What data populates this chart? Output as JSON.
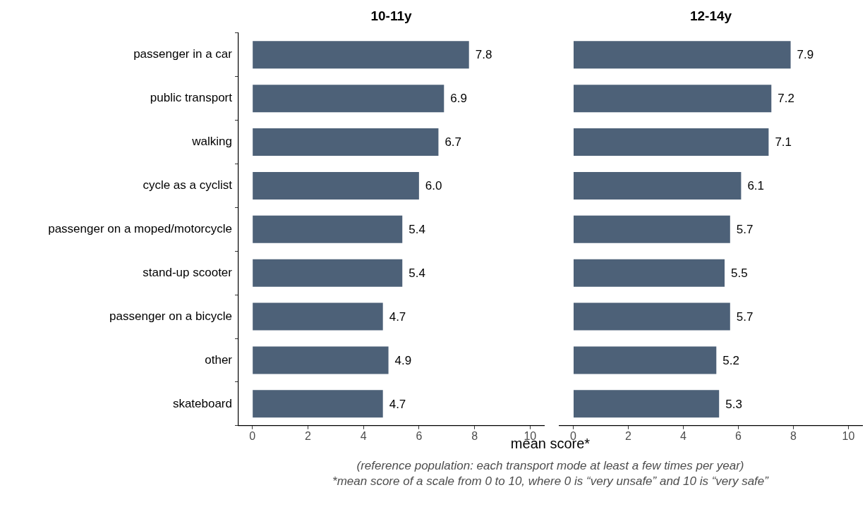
{
  "chart_data": [
    {
      "type": "bar",
      "orientation": "horizontal",
      "title": "10-11y",
      "xlabel": "mean score*",
      "categories": [
        "passenger in a car",
        "public transport",
        "walking",
        "cycle as a cyclist",
        "passenger on a moped/motorcycle",
        "stand-up scooter",
        "passenger on a bicycle",
        "other",
        "skateboard"
      ],
      "values": [
        7.8,
        6.9,
        6.7,
        6.0,
        5.4,
        5.4,
        4.7,
        4.9,
        4.7
      ],
      "value_labels": [
        "7.8",
        "6.9",
        "6.7",
        "6.0",
        "5.4",
        "5.4",
        "4.7",
        "4.9",
        "4.7"
      ],
      "color": "#4d6178",
      "xlim": [
        -0.5,
        10.5
      ],
      "xticks": [
        0,
        2,
        4,
        6,
        8,
        10
      ],
      "grid": false,
      "legend": false,
      "annotations": [
        "(reference population: each transport mode at least a few times per year)",
        "*mean score of a scale from 0 to 10, where 0 is “very unsafe” and 10 is “very safe”"
      ]
    },
    {
      "type": "bar",
      "orientation": "horizontal",
      "title": "12-14y",
      "categories": [
        null,
        null,
        null,
        null,
        null,
        null,
        null,
        null,
        null
      ],
      "values": [
        7.9,
        7.2,
        7.1,
        6.1,
        5.7,
        5.5,
        5.7,
        5.2,
        5.3
      ],
      "value_labels": [
        "7.9",
        "7.2",
        "7.1",
        "6.1",
        "5.7",
        "5.5",
        "5.7",
        "5.2",
        "5.3"
      ],
      "color": "#4d6178",
      "xlim": [
        -0.5,
        10.5
      ],
      "xticks": [
        0,
        2,
        4,
        6,
        8,
        10
      ],
      "grid": false,
      "legend": false,
      "tick_labels": "x"
    }
  ]
}
